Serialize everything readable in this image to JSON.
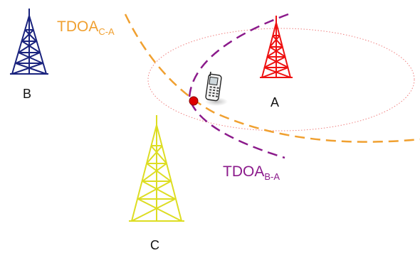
{
  "towers": {
    "a": {
      "label": "A",
      "color": "#ee1111"
    },
    "b": {
      "label": "B",
      "color": "#1a237e"
    },
    "c": {
      "label": "C",
      "color": "#dddd22"
    }
  },
  "curves": {
    "tdoa_ca": {
      "main": "TDOA",
      "sub": "C-A",
      "color": "#f0a030"
    },
    "tdoa_ba": {
      "main": "TDOA",
      "sub": "B-A",
      "color": "#8b1a8b"
    }
  },
  "ellipse_color": "#f08080",
  "intersection_color": "#dd0000",
  "phone_icon": "mobile-phone-icon"
}
